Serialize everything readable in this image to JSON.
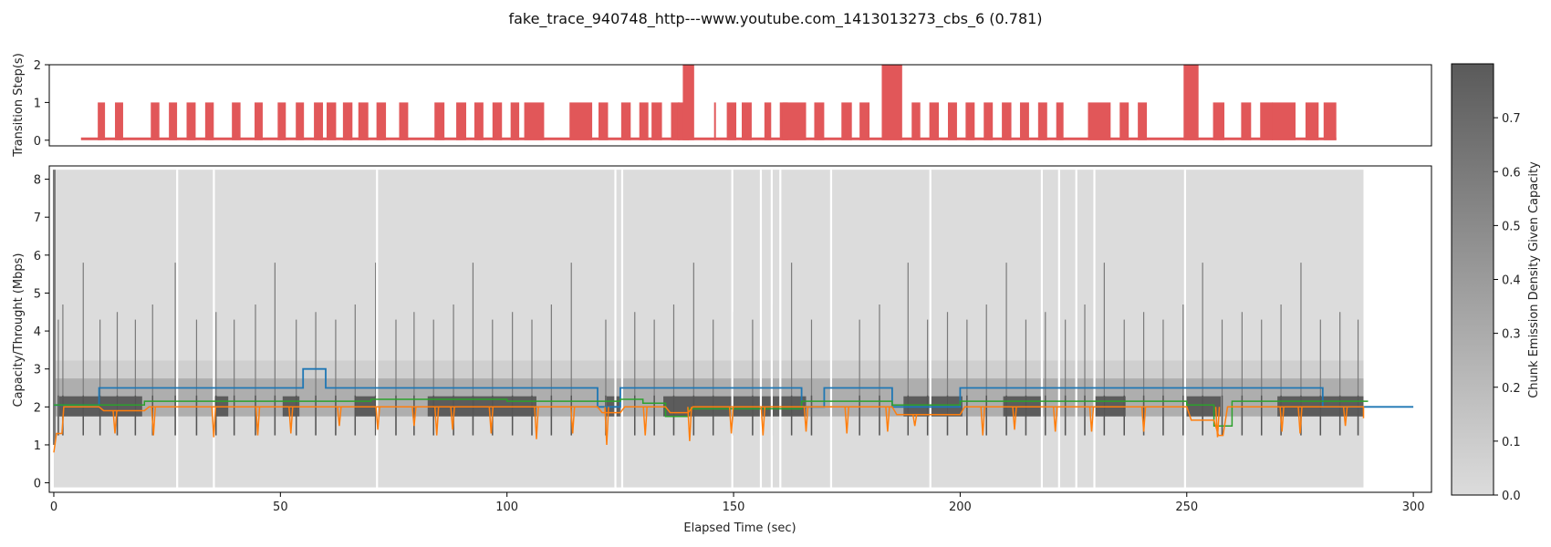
{
  "chart_data": {
    "title": "fake_trace_940748_http---www.youtube.com_1413013273_cbs_6 (0.781)",
    "x_axis": {
      "label": "Elapsed Time (sec)",
      "range": [
        -1,
        304
      ],
      "ticks": [
        0,
        50,
        100,
        150,
        200,
        250,
        300
      ],
      "tick_labels": [
        "0",
        "50",
        "100",
        "150",
        "200",
        "250",
        "300"
      ]
    },
    "top_panel": {
      "type": "bar",
      "ylabel": "Transition Step(s)",
      "ylim": [
        -0.15,
        2.0
      ],
      "yticks": [
        0,
        1,
        2
      ],
      "ytick_labels": [
        "0",
        "1",
        "2"
      ],
      "color": "#e15759",
      "baseline_range": [
        6,
        283
      ],
      "bars": [
        {
          "x0": 9.7,
          "x1": 11.3,
          "y": 1
        },
        {
          "x0": 13.5,
          "x1": 15.3,
          "y": 1
        },
        {
          "x0": 21.4,
          "x1": 23.3,
          "y": 1
        },
        {
          "x0": 25.4,
          "x1": 27.2,
          "y": 1
        },
        {
          "x0": 29.3,
          "x1": 31.3,
          "y": 1
        },
        {
          "x0": 33.4,
          "x1": 35.3,
          "y": 1
        },
        {
          "x0": 39.3,
          "x1": 41.2,
          "y": 1
        },
        {
          "x0": 44.3,
          "x1": 46.1,
          "y": 1
        },
        {
          "x0": 49.4,
          "x1": 51.2,
          "y": 1
        },
        {
          "x0": 53.4,
          "x1": 55.2,
          "y": 1
        },
        {
          "x0": 57.4,
          "x1": 59.4,
          "y": 1
        },
        {
          "x0": 60.2,
          "x1": 62.3,
          "y": 1
        },
        {
          "x0": 63.8,
          "x1": 65.9,
          "y": 1
        },
        {
          "x0": 67.2,
          "x1": 69.4,
          "y": 1
        },
        {
          "x0": 71.2,
          "x1": 73.3,
          "y": 1
        },
        {
          "x0": 76.2,
          "x1": 78.2,
          "y": 1
        },
        {
          "x0": 84.0,
          "x1": 86.2,
          "y": 1
        },
        {
          "x0": 88.8,
          "x1": 91.0,
          "y": 1
        },
        {
          "x0": 92.8,
          "x1": 94.8,
          "y": 1
        },
        {
          "x0": 96.8,
          "x1": 98.9,
          "y": 1
        },
        {
          "x0": 100.8,
          "x1": 102.7,
          "y": 1
        },
        {
          "x0": 103.8,
          "x1": 108.2,
          "y": 1
        },
        {
          "x0": 113.8,
          "x1": 118.8,
          "y": 1
        },
        {
          "x0": 120.2,
          "x1": 122.3,
          "y": 1
        },
        {
          "x0": 125.2,
          "x1": 127.3,
          "y": 1
        },
        {
          "x0": 129.2,
          "x1": 131.2,
          "y": 1
        },
        {
          "x0": 131.9,
          "x1": 134.2,
          "y": 1
        },
        {
          "x0": 136.2,
          "x1": 138.1,
          "y": 1
        },
        {
          "x0": 137.7,
          "x1": 140.2,
          "y": 1
        },
        {
          "x0": 138.8,
          "x1": 141.3,
          "y": 2
        },
        {
          "x0": 145.7,
          "x1": 146.1,
          "y": 1
        },
        {
          "x0": 148.5,
          "x1": 150.6,
          "y": 1
        },
        {
          "x0": 151.8,
          "x1": 154.0,
          "y": 1
        },
        {
          "x0": 156.8,
          "x1": 158.3,
          "y": 1
        },
        {
          "x0": 160.2,
          "x1": 162.0,
          "y": 1
        },
        {
          "x0": 160.8,
          "x1": 166.0,
          "y": 1
        },
        {
          "x0": 167.8,
          "x1": 170.0,
          "y": 1
        },
        {
          "x0": 173.8,
          "x1": 176.1,
          "y": 1
        },
        {
          "x0": 177.8,
          "x1": 180.0,
          "y": 1
        },
        {
          "x0": 182.7,
          "x1": 187.2,
          "y": 2
        },
        {
          "x0": 189.3,
          "x1": 191.2,
          "y": 1
        },
        {
          "x0": 193.2,
          "x1": 195.3,
          "y": 1
        },
        {
          "x0": 197.3,
          "x1": 199.3,
          "y": 1
        },
        {
          "x0": 201.2,
          "x1": 203.2,
          "y": 1
        },
        {
          "x0": 205.2,
          "x1": 207.2,
          "y": 1
        },
        {
          "x0": 209.2,
          "x1": 211.3,
          "y": 1
        },
        {
          "x0": 213.2,
          "x1": 215.2,
          "y": 1
        },
        {
          "x0": 217.2,
          "x1": 219.2,
          "y": 1
        },
        {
          "x0": 221.2,
          "x1": 222.8,
          "y": 1
        },
        {
          "x0": 228.2,
          "x1": 233.2,
          "y": 1
        },
        {
          "x0": 235.2,
          "x1": 237.2,
          "y": 1
        },
        {
          "x0": 239.2,
          "x1": 241.2,
          "y": 1
        },
        {
          "x0": 249.3,
          "x1": 252.6,
          "y": 2
        },
        {
          "x0": 255.8,
          "x1": 258.3,
          "y": 1
        },
        {
          "x0": 262.0,
          "x1": 264.2,
          "y": 1
        },
        {
          "x0": 266.2,
          "x1": 269.0,
          "y": 1
        },
        {
          "x0": 268.8,
          "x1": 274.0,
          "y": 1
        },
        {
          "x0": 276.2,
          "x1": 279.1,
          "y": 1
        },
        {
          "x0": 280.2,
          "x1": 283.0,
          "y": 1
        }
      ]
    },
    "main_panel": {
      "type": "line",
      "ylabel": "Capacity/Throught (Mbps)",
      "ylim": [
        -0.25,
        8.35
      ],
      "yticks": [
        0,
        1,
        2,
        3,
        4,
        5,
        6,
        7,
        8
      ],
      "ytick_labels": [
        "0",
        "1",
        "2",
        "3",
        "4",
        "5",
        "6",
        "7",
        "8"
      ],
      "heatmap_background": {
        "x_range": [
          0,
          289
        ],
        "y_top": 8.25,
        "gaps": [
          27.2,
          35.3,
          71.3,
          123.9,
          125.4,
          149.7,
          156.0,
          158.4,
          160.3,
          171.5,
          193.4,
          218.0,
          221.8,
          225.6,
          229.6,
          249.6
        ],
        "bands": [
          {
            "y0": 2.28,
            "y1": 3.22,
            "color": "#cfcfcf"
          },
          {
            "y0": 1.75,
            "y1": 2.75,
            "color": "#aeaeae"
          }
        ],
        "dark_blocks": [
          {
            "x0": 1.2,
            "x1": 19.5,
            "y0": 1.75,
            "y1": 2.28
          },
          {
            "x0": 35.5,
            "x1": 38.5,
            "y0": 1.75,
            "y1": 2.28
          },
          {
            "x0": 50.5,
            "x1": 54.2,
            "y0": 1.75,
            "y1": 2.28
          },
          {
            "x0": 66.5,
            "x1": 71.0,
            "y0": 1.75,
            "y1": 2.28
          },
          {
            "x0": 82.5,
            "x1": 106.5,
            "y0": 1.75,
            "y1": 2.28
          },
          {
            "x0": 122.0,
            "x1": 125.0,
            "y0": 1.75,
            "y1": 2.28
          },
          {
            "x0": 134.5,
            "x1": 166.0,
            "y0": 1.75,
            "y1": 2.28
          },
          {
            "x0": 187.5,
            "x1": 200.5,
            "y0": 1.75,
            "y1": 2.28
          },
          {
            "x0": 209.5,
            "x1": 218.0,
            "y0": 1.75,
            "y1": 2.28
          },
          {
            "x0": 229.8,
            "x1": 236.5,
            "y0": 1.75,
            "y1": 2.28
          },
          {
            "x0": 250.0,
            "x1": 257.5,
            "y0": 1.75,
            "y1": 2.28
          },
          {
            "x0": 270.0,
            "x1": 289.0,
            "y0": 1.75,
            "y1": 2.28
          }
        ],
        "spike_x": [
          1.0,
          2.0,
          6.5,
          10.2,
          14.0,
          18.0,
          21.8,
          26.8,
          31.5,
          35.8,
          39.8,
          44.5,
          48.8,
          53.5,
          57.8,
          62.2,
          66.5,
          71.0,
          75.5,
          79.5,
          83.8,
          88.2,
          92.5,
          96.8,
          101.2,
          105.5,
          109.8,
          114.2,
          121.8,
          128.2,
          132.5,
          136.8,
          141.2,
          145.5,
          149.8,
          154.2,
          158.5,
          162.8,
          167.2,
          171.5,
          177.8,
          182.2,
          188.5,
          192.8,
          197.2,
          201.5,
          205.8,
          210.2,
          214.5,
          218.8,
          223.2,
          227.5,
          231.8,
          236.2,
          240.5,
          244.8,
          249.2,
          253.5,
          257.8,
          262.2,
          266.5,
          270.8,
          275.2,
          279.5,
          283.8,
          287.8
        ]
      },
      "series": [
        {
          "color": "#1f77b4",
          "step": true,
          "points": [
            [
              0,
              2.05
            ],
            [
              10,
              2.05
            ],
            [
              10,
              2.5
            ],
            [
              20,
              2.5
            ],
            [
              55,
              2.5
            ],
            [
              55,
              3.0
            ],
            [
              60,
              3.0
            ],
            [
              60,
              2.5
            ],
            [
              120,
              2.5
            ],
            [
              120,
              2.0
            ],
            [
              125,
              2.0
            ],
            [
              125,
              2.5
            ],
            [
              165,
              2.5
            ],
            [
              165,
              2.0
            ],
            [
              170,
              2.0
            ],
            [
              170,
              2.5
            ],
            [
              185,
              2.5
            ],
            [
              185,
              2.0
            ],
            [
              200,
              2.0
            ],
            [
              200,
              2.5
            ],
            [
              280,
              2.5
            ],
            [
              280,
              2.0
            ],
            [
              300,
              2.0
            ]
          ]
        },
        {
          "color": "#2ca02c",
          "step": true,
          "points": [
            [
              0,
              2.05
            ],
            [
              20,
              2.05
            ],
            [
              20,
              2.15
            ],
            [
              70,
              2.15
            ],
            [
              70,
              2.2
            ],
            [
              100,
              2.2
            ],
            [
              100,
              2.15
            ],
            [
              125,
              2.15
            ],
            [
              125,
              2.2
            ],
            [
              130,
              2.2
            ],
            [
              130,
              2.1
            ],
            [
              135,
              2.1
            ],
            [
              135,
              1.75
            ],
            [
              140,
              1.75
            ],
            [
              140,
              1.95
            ],
            [
              165,
              1.95
            ],
            [
              165,
              2.15
            ],
            [
              185,
              2.15
            ],
            [
              185,
              2.05
            ],
            [
              200,
              2.05
            ],
            [
              200,
              2.15
            ],
            [
              250,
              2.15
            ],
            [
              250,
              2.05
            ],
            [
              256,
              2.05
            ],
            [
              256,
              1.5
            ],
            [
              260,
              1.5
            ],
            [
              260,
              2.15
            ],
            [
              290,
              2.15
            ]
          ]
        },
        {
          "color": "#ff7f0e",
          "step": false,
          "points": [
            [
              0,
              0.8
            ],
            [
              0.6,
              1.3
            ],
            [
              1.8,
              1.3
            ],
            [
              2.2,
              2.0
            ],
            [
              10,
              2.0
            ],
            [
              11,
              1.9
            ],
            [
              20,
              1.9
            ],
            [
              21,
              2.0
            ],
            [
              120,
              2.0
            ],
            [
              121,
              1.85
            ],
            [
              125,
              1.85
            ],
            [
              126,
              2.0
            ],
            [
              135,
              2.0
            ],
            [
              136,
              1.85
            ],
            [
              140,
              1.85
            ],
            [
              141,
              2.0
            ],
            [
              185,
              2.0
            ],
            [
              186,
              1.8
            ],
            [
              200,
              1.8
            ],
            [
              201,
              2.0
            ],
            [
              250,
              2.0
            ],
            [
              251,
              1.65
            ],
            [
              256,
              1.65
            ],
            [
              257,
              1.25
            ],
            [
              258,
              1.25
            ],
            [
              259,
              2.0
            ],
            [
              289,
              2.0
            ],
            [
              289,
              1.7
            ]
          ],
          "dips": [
            [
              13.5,
              1.3
            ],
            [
              22,
              1.25
            ],
            [
              35.3,
              1.2
            ],
            [
              45,
              1.25
            ],
            [
              52.3,
              1.3
            ],
            [
              63,
              1.5
            ],
            [
              71.5,
              1.4
            ],
            [
              79.5,
              1.5
            ],
            [
              84.5,
              1.25
            ],
            [
              88,
              1.4
            ],
            [
              96.5,
              1.3
            ],
            [
              106.5,
              1.15
            ],
            [
              114.5,
              1.3
            ],
            [
              122,
              1.0
            ],
            [
              130.5,
              1.25
            ],
            [
              140.3,
              1.1
            ],
            [
              149.5,
              1.3
            ],
            [
              156.5,
              1.25
            ],
            [
              166,
              1.35
            ],
            [
              175,
              1.3
            ],
            [
              184,
              1.35
            ],
            [
              190,
              1.5
            ],
            [
              205,
              1.25
            ],
            [
              212,
              1.4
            ],
            [
              221,
              1.35
            ],
            [
              229,
              1.35
            ],
            [
              240.5,
              1.35
            ],
            [
              256.8,
              1.2
            ],
            [
              271,
              1.35
            ],
            [
              275,
              1.3
            ],
            [
              285,
              1.5
            ]
          ]
        }
      ]
    },
    "colorbar": {
      "label": "Chunk Emission Density Given Capacity",
      "range": [
        0,
        0.8
      ],
      "ticks": [
        0.0,
        0.1,
        0.2,
        0.3,
        0.4,
        0.5,
        0.6,
        0.7
      ],
      "tick_labels": [
        "0.0",
        "0.1",
        "0.2",
        "0.3",
        "0.4",
        "0.5",
        "0.6",
        "0.7"
      ],
      "color_low": "#dcdcdc",
      "color_high": "#5a5a5a"
    }
  }
}
